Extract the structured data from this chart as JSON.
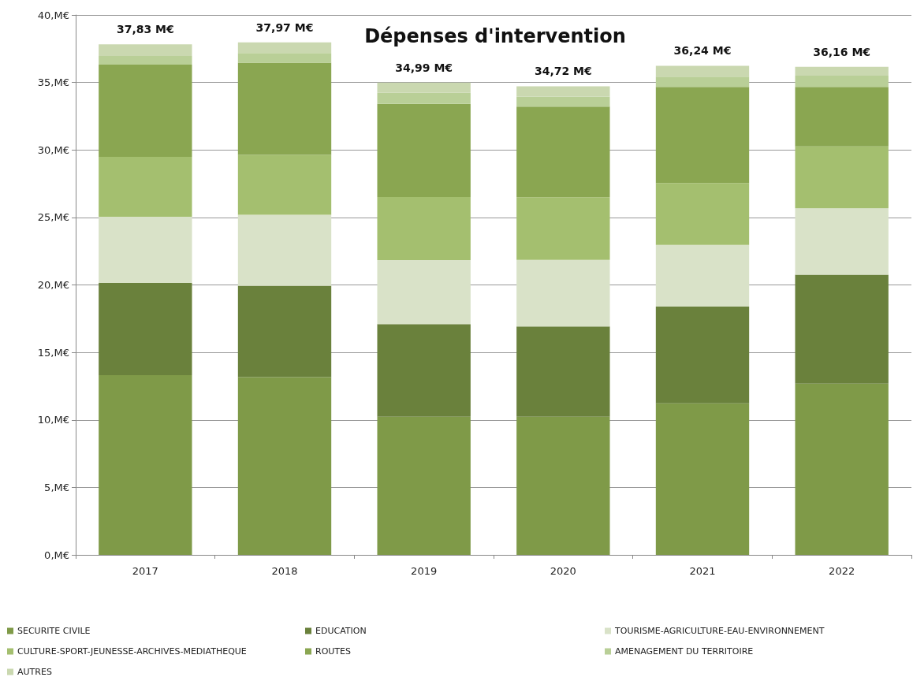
{
  "chart_data": {
    "type": "bar",
    "stacked": true,
    "title": "Dépenses d'intervention",
    "categories": [
      "2017",
      "2018",
      "2019",
      "2020",
      "2021",
      "2022"
    ],
    "series": [
      {
        "name": "SECURITE CIVILE",
        "color": "#7f9a48",
        "values": [
          13.31,
          13.17,
          10.24,
          10.24,
          11.23,
          12.69
        ]
      },
      {
        "name": "EDUCATION",
        "color": "#6a813c",
        "values": [
          6.84,
          6.77,
          6.86,
          6.68,
          7.16,
          8.07
        ]
      },
      {
        "name": "TOURISME-AGRICULTURE-EAU-ENVIRONNEMENT",
        "color": "#d9e2c8",
        "values": [
          4.9,
          5.25,
          4.74,
          4.93,
          4.58,
          4.92
        ]
      },
      {
        "name": "CULTURE-SPORT-JEUNESSE-ARCHIVES-MEDIATHEQUE",
        "color": "#a4bf6f",
        "values": [
          4.44,
          4.44,
          4.67,
          4.64,
          4.58,
          4.58
        ]
      },
      {
        "name": "ROUTES",
        "color": "#8aa651",
        "values": [
          6.83,
          6.83,
          6.9,
          6.72,
          7.12,
          4.41
        ]
      },
      {
        "name": "AMENAGEMENT DU TERRITOIRE",
        "color": "#b9cf97",
        "values": [
          0.64,
          0.72,
          0.83,
          0.73,
          0.76,
          0.84
        ]
      },
      {
        "name": "AUTRES",
        "color": "#cad8b0",
        "values": [
          0.87,
          0.79,
          0.75,
          0.78,
          0.81,
          0.65
        ]
      }
    ],
    "totals": [
      "37,83 M€",
      "37,97 M€",
      "34,99 M€",
      "34,72 M€",
      "36,24 M€",
      "36,16 M€"
    ],
    "ylim": [
      0,
      40
    ],
    "yticks": [
      {
        "value": 0,
        "label": "0,M€"
      },
      {
        "value": 5,
        "label": "5,M€"
      },
      {
        "value": 10,
        "label": "10,M€"
      },
      {
        "value": 15,
        "label": "15,M€"
      },
      {
        "value": 20,
        "label": "20,M€"
      },
      {
        "value": 25,
        "label": "25,M€"
      },
      {
        "value": 30,
        "label": "30,M€"
      },
      {
        "value": 35,
        "label": "35,M€"
      },
      {
        "value": 40,
        "label": "40,M€"
      }
    ],
    "grid": "y",
    "legend": "bottom"
  }
}
